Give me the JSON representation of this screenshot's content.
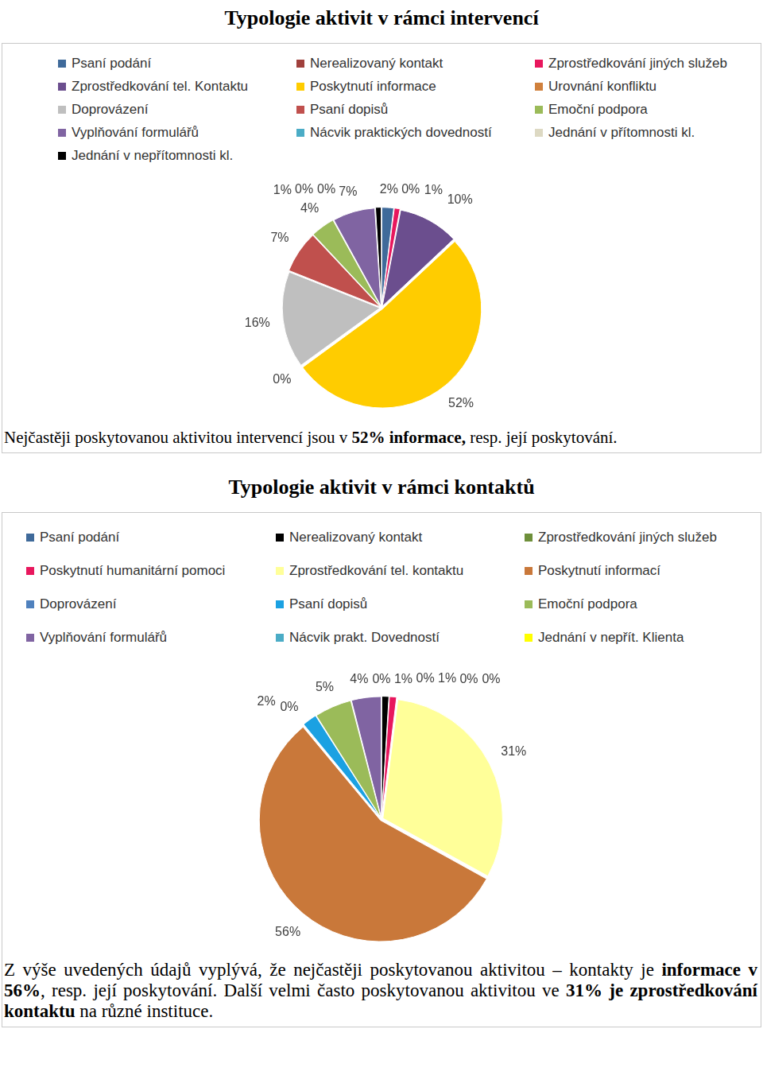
{
  "chart_data": [
    {
      "type": "pie",
      "title": "Typologie aktivit v rámci intervencí",
      "categories": [
        "Psaní podání",
        "Nerealizovaný kontakt",
        "Zprostředkování jiných služeb",
        "Zprostředkování tel. Kontaktu",
        "Poskytnutí informace",
        "Urovnání konfliktu",
        "Doprovázení",
        "Psaní dopisů",
        "Emoční podpora",
        "Vyplňování formulářů",
        "Nácvik praktických dovedností",
        "Jednání v přítomnosti kl.",
        "Jednání v nepřítomnosti kl."
      ],
      "values": [
        2,
        0,
        1,
        10,
        52,
        0,
        16,
        7,
        4,
        7,
        0,
        0,
        1
      ],
      "value_labels": [
        "2%",
        "0%",
        "1%",
        "10%",
        "52%",
        "0%",
        "16%",
        "7%",
        "4%",
        "7%",
        "0%",
        "0%",
        "1%"
      ],
      "colors": [
        "#3f6a9a",
        "#a0403c",
        "#e8175d",
        "#6b4e8e",
        "#ffcc00",
        "#d0803c",
        "#bfbfbf",
        "#c0504d",
        "#9bbb59",
        "#8064a2",
        "#4bacc6",
        "#ddd9c3",
        "#000000"
      ],
      "data_labels": true,
      "legend": "top",
      "caption": [
        "Nejčastěji poskytovanou aktivitou intervencí jsou v ",
        "52% informace,",
        " resp. její poskytování."
      ]
    },
    {
      "type": "pie",
      "title": "Typologie aktivit v rámci kontaktů",
      "categories": [
        "Psaní podání",
        "Nerealizovaný kontakt",
        "Zprostředkování jiných služeb",
        "Poskytnutí humanitární pomoci",
        "Zprostředkování tel. kontaktu",
        "Poskytnutí informací",
        "Doprovázení",
        "Psaní dopisů",
        "Emoční podpora",
        "Vyplňování formulářů",
        "Nácvik prakt. Dovedností",
        "Jednání v nepřít. Klienta"
      ],
      "values": [
        0,
        1,
        0,
        1,
        31,
        56,
        0,
        2,
        5,
        4,
        0,
        0
      ],
      "value_labels": [
        "0%",
        "1%",
        "0%",
        "1%",
        "31%",
        "56%",
        "0%",
        "2%",
        "5%",
        "4%",
        "0%",
        "0%"
      ],
      "colors": [
        "#3f6a9a",
        "#000000",
        "#6e8f3a",
        "#e8175d",
        "#ffff99",
        "#c9783a",
        "#4f81bd",
        "#1ba1e2",
        "#9bbb59",
        "#8064a2",
        "#4bacc6",
        "#ffff00"
      ],
      "data_labels": true,
      "legend": "top",
      "caption": [
        "Z výše uvedených údajů vyplývá, že nejčastěji poskytovanou aktivitou – kontakty je ",
        "informace v 56%",
        ", resp. její poskytování. Další velmi často poskytovanou aktivitou ve ",
        "31% je zprostředkování kontaktu",
        " na různé instituce."
      ]
    }
  ]
}
